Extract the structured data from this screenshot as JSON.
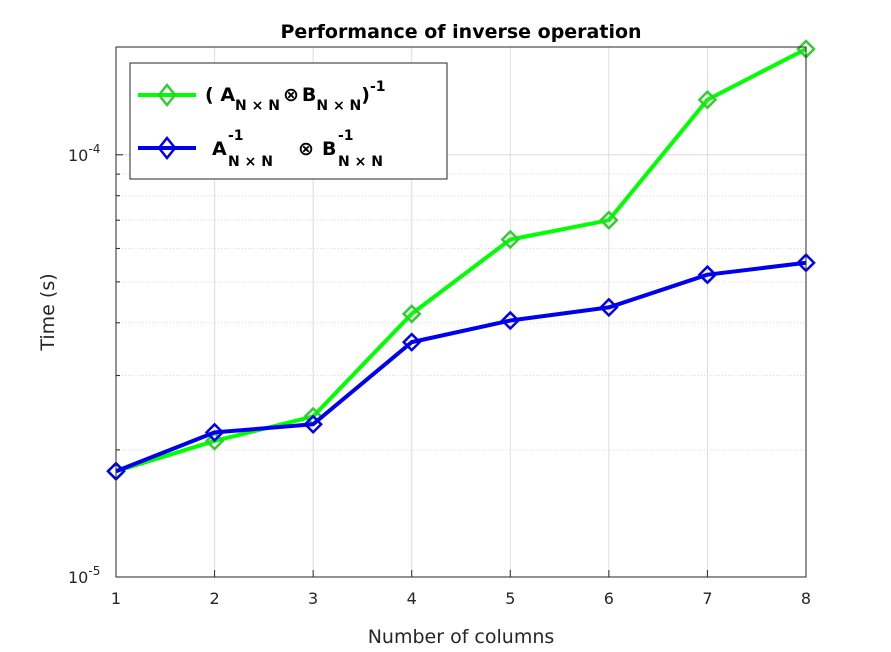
{
  "chart_data": {
    "type": "line",
    "title": "Performance of inverse operation",
    "xlabel": "Number of columns",
    "ylabel": "Time (s)",
    "x": [
      1,
      2,
      3,
      4,
      5,
      6,
      7,
      8
    ],
    "xlim": [
      1,
      8
    ],
    "ylim": [
      1e-05,
      0.00018
    ],
    "yscale": "log",
    "grid": true,
    "minor_grid": true,
    "legend_position": "top-left",
    "x_ticks": [
      "1",
      "2",
      "3",
      "4",
      "5",
      "6",
      "7",
      "8"
    ],
    "y_ticks": [
      {
        "value": 1e-05,
        "base": "10",
        "exp": "-5"
      },
      {
        "value": 0.0001,
        "base": "10",
        "exp": "-4"
      }
    ],
    "series": [
      {
        "name": "( A_{N×N} ⊗ B_{N×N} )^{-1}",
        "legend": {
          "A": "A",
          "subA": "N × N",
          "op": "⊗",
          "B": "B",
          "subB": "N × N",
          "open": "( ",
          "close": ")",
          "sup": "-1"
        },
        "color": "#00ff00",
        "edge_color": "#33cc33",
        "marker": "diamond",
        "values": [
          1.78e-05,
          2.1e-05,
          2.4e-05,
          4.2e-05,
          6.3e-05,
          7e-05,
          0.000135,
          0.000178
        ]
      },
      {
        "name": "A^{-1}_{N×N} ⊗ B^{-1}_{N×N}",
        "legend": {
          "A": "A",
          "subA": "N × N",
          "supA": "-1",
          "op": "⊗",
          "B": "B",
          "subB": "N × N",
          "supB": "-1"
        },
        "color": "#0000ee",
        "edge_color": "#0000ee",
        "marker": "diamond",
        "values": [
          1.78e-05,
          2.2e-05,
          2.3e-05,
          3.6e-05,
          4.05e-05,
          4.35e-05,
          5.2e-05,
          5.55e-05
        ]
      }
    ]
  }
}
